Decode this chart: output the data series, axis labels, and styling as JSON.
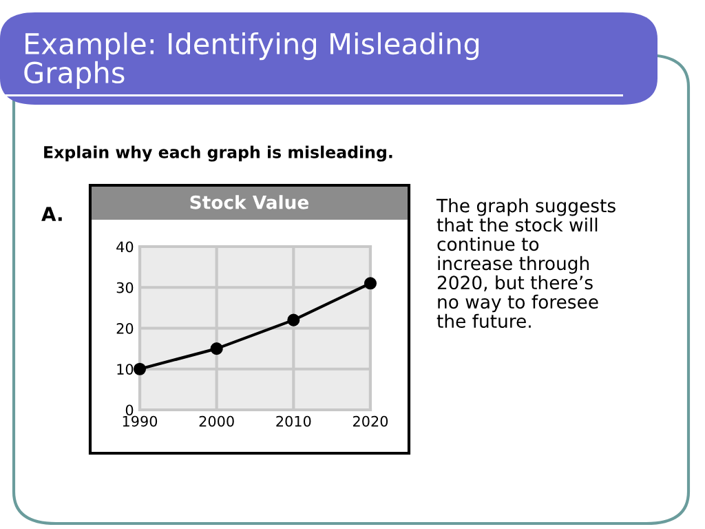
{
  "chart_data": {
    "type": "line",
    "title": "Stock Value",
    "x": [
      1990,
      2000,
      2010,
      2020
    ],
    "series": [
      {
        "color": "#000000",
        "values": [
          10,
          15,
          22,
          31
        ]
      }
    ],
    "xlim": [
      1990,
      2020
    ],
    "xticks": [
      1990,
      2000,
      2010,
      2020
    ],
    "ylim": [
      0,
      40
    ],
    "yticks": [
      0,
      10,
      20,
      30,
      40
    ],
    "grid": true,
    "marker": "circle",
    "line_style": "solid",
    "legend": false,
    "annotations": [
      "Example: Identifying Misleading\nGraphs",
      "Explain why each graph is misleading.",
      "A.",
      "The graph suggests\nthat the stock will\ncontinue to\nincrease through\n2020, but there’s\nno way to foresee\nthe future."
    ]
  }
}
